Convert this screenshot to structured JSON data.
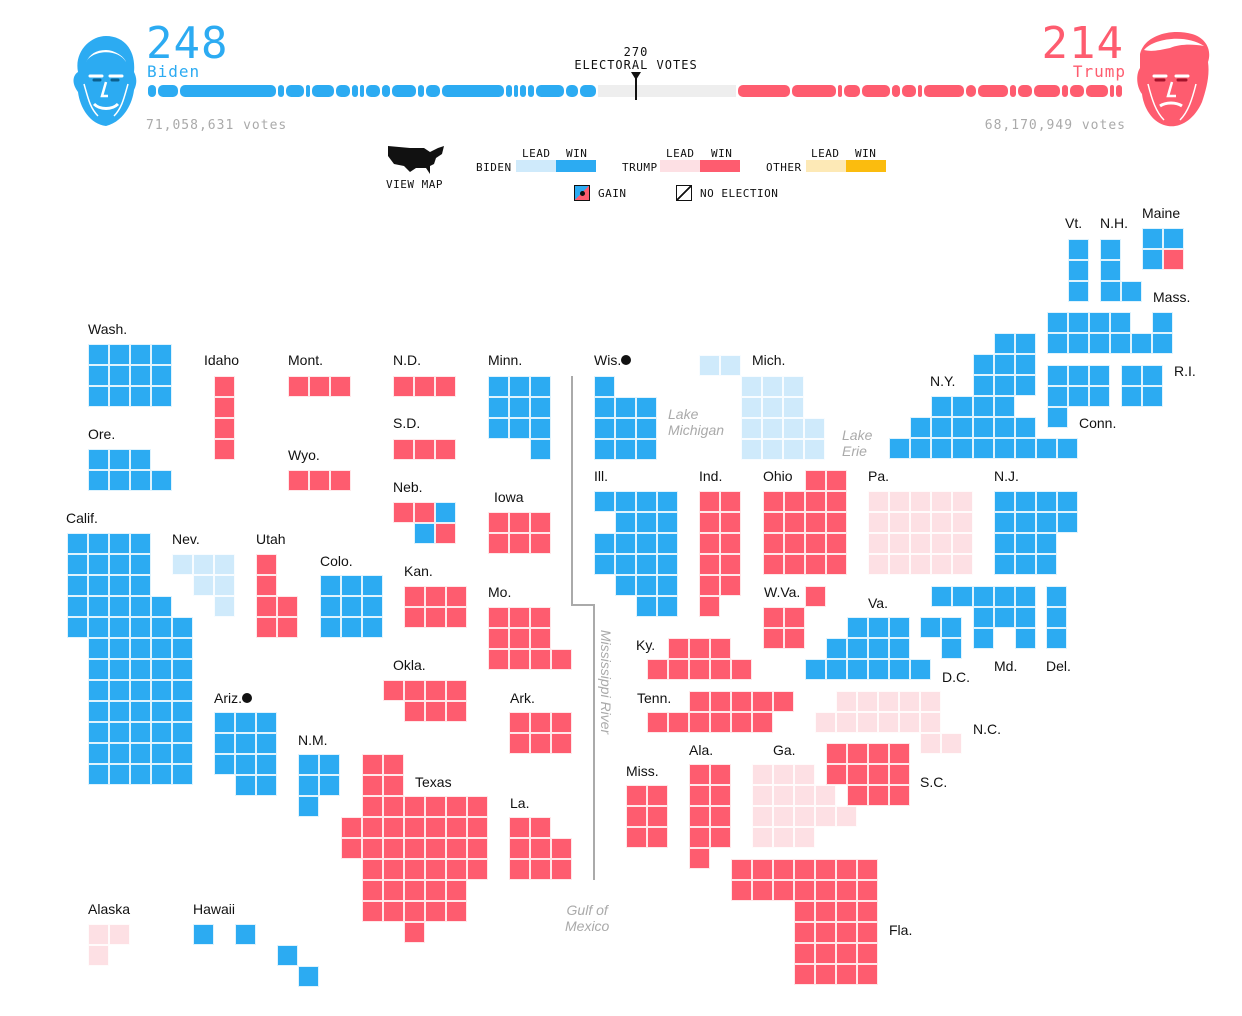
{
  "header": {
    "biden": {
      "electoral_votes": "248",
      "name": "Biden",
      "popular_votes": "71,058,631 votes"
    },
    "trump": {
      "electoral_votes": "214",
      "name": "Trump",
      "popular_votes": "68,170,949 votes"
    },
    "threshold": {
      "value": "270",
      "label": "ELECTORAL VOTES"
    }
  },
  "controls": {
    "view_map_label": "VIEW MAP"
  },
  "legend": {
    "lead": "LEAD",
    "win": "WIN",
    "biden": "BIDEN",
    "trump": "TRUMP",
    "other": "OTHER",
    "gain": "GAIN",
    "no_election": "NO ELECTION"
  },
  "colors": {
    "biden_win": "#2cabf2",
    "biden_lead": "#cfeafb",
    "trump_win": "#fe5c6f",
    "trump_lead": "#fde0e4",
    "other_lead": "#fde9b6",
    "other_win": "#fbbc0e",
    "remaining": "#eeeeee"
  },
  "map_labels": {
    "wa": "Wash.",
    "or": "Ore.",
    "ca": "Calif.",
    "id": "Idaho",
    "nv": "Nev.",
    "ut": "Utah",
    "az": "Ariz.",
    "mt": "Mont.",
    "wy": "Wyo.",
    "co": "Colo.",
    "nm": "N.M.",
    "nd": "N.D.",
    "sd": "S.D.",
    "ne": "Neb.",
    "ks": "Kan.",
    "ok": "Okla.",
    "tx": "Texas",
    "mn": "Minn.",
    "ia": "Iowa",
    "mo": "Mo.",
    "ar": "Ark.",
    "la": "La.",
    "wi": "Wis.",
    "il": "Ill.",
    "mi": "Mich.",
    "in": "Ind.",
    "oh": "Ohio",
    "ky": "Ky.",
    "tn": "Tenn.",
    "ms": "Miss.",
    "al": "Ala.",
    "ga": "Ga.",
    "fl": "Fla.",
    "sc": "S.C.",
    "nc": "N.C.",
    "va": "Va.",
    "wv": "W.Va.",
    "pa": "Pa.",
    "ny": "N.Y.",
    "nj": "N.J.",
    "md": "Md.",
    "de": "Del.",
    "dc": "D.C.",
    "vt": "Vt.",
    "nh": "N.H.",
    "me": "Maine",
    "ma": "Mass.",
    "ri": "R.I.",
    "ct": "Conn.",
    "ak": "Alaska",
    "hi": "Hawaii"
  },
  "geo_labels": {
    "lake_michigan": "Lake\nMichigan",
    "lake_erie": "Lake\nErie",
    "mississippi": "Mississippi River",
    "gulf": "Gulf of\nMexico"
  },
  "states": [
    {
      "abbr": "WA",
      "status": "biden_win",
      "ev": 12
    },
    {
      "abbr": "OR",
      "status": "biden_win",
      "ev": 7
    },
    {
      "abbr": "CA",
      "status": "biden_win",
      "ev": 55
    },
    {
      "abbr": "ID",
      "status": "trump_win",
      "ev": 4
    },
    {
      "abbr": "NV",
      "status": "biden_lead",
      "ev": 6
    },
    {
      "abbr": "UT",
      "status": "trump_win",
      "ev": 6
    },
    {
      "abbr": "AZ",
      "status": "biden_win",
      "ev": 11,
      "gain": true
    },
    {
      "abbr": "MT",
      "status": "trump_win",
      "ev": 3
    },
    {
      "abbr": "WY",
      "status": "trump_win",
      "ev": 3
    },
    {
      "abbr": "CO",
      "status": "biden_win",
      "ev": 9
    },
    {
      "abbr": "NM",
      "status": "biden_win",
      "ev": 5
    },
    {
      "abbr": "ND",
      "status": "trump_win",
      "ev": 3
    },
    {
      "abbr": "SD",
      "status": "trump_win",
      "ev": 3
    },
    {
      "abbr": "NE",
      "status": "trump_win",
      "ev": 5,
      "split_biden": 1
    },
    {
      "abbr": "KS",
      "status": "trump_win",
      "ev": 6
    },
    {
      "abbr": "OK",
      "status": "trump_win",
      "ev": 7
    },
    {
      "abbr": "TX",
      "status": "trump_win",
      "ev": 38
    },
    {
      "abbr": "MN",
      "status": "biden_win",
      "ev": 10
    },
    {
      "abbr": "IA",
      "status": "trump_win",
      "ev": 6
    },
    {
      "abbr": "MO",
      "status": "trump_win",
      "ev": 10
    },
    {
      "abbr": "AR",
      "status": "trump_win",
      "ev": 6
    },
    {
      "abbr": "LA",
      "status": "trump_win",
      "ev": 8
    },
    {
      "abbr": "WI",
      "status": "biden_win",
      "ev": 10,
      "gain": true
    },
    {
      "abbr": "IL",
      "status": "biden_win",
      "ev": 20
    },
    {
      "abbr": "MI",
      "status": "biden_lead",
      "ev": 16
    },
    {
      "abbr": "IN",
      "status": "trump_win",
      "ev": 11
    },
    {
      "abbr": "OH",
      "status": "trump_win",
      "ev": 18
    },
    {
      "abbr": "KY",
      "status": "trump_win",
      "ev": 8
    },
    {
      "abbr": "TN",
      "status": "trump_win",
      "ev": 11
    },
    {
      "abbr": "MS",
      "status": "trump_win",
      "ev": 6
    },
    {
      "abbr": "AL",
      "status": "trump_win",
      "ev": 9
    },
    {
      "abbr": "GA",
      "status": "trump_lead",
      "ev": 16
    },
    {
      "abbr": "FL",
      "status": "trump_win",
      "ev": 29
    },
    {
      "abbr": "SC",
      "status": "trump_win",
      "ev": 9
    },
    {
      "abbr": "NC",
      "status": "trump_lead",
      "ev": 15
    },
    {
      "abbr": "VA",
      "status": "biden_win",
      "ev": 13
    },
    {
      "abbr": "WV",
      "status": "trump_win",
      "ev": 5
    },
    {
      "abbr": "PA",
      "status": "trump_lead",
      "ev": 20
    },
    {
      "abbr": "NY",
      "status": "biden_win",
      "ev": 29
    },
    {
      "abbr": "NJ",
      "status": "biden_win",
      "ev": 14
    },
    {
      "abbr": "MD",
      "status": "biden_win",
      "ev": 10
    },
    {
      "abbr": "DE",
      "status": "biden_win",
      "ev": 3
    },
    {
      "abbr": "DC",
      "status": "biden_win",
      "ev": 3
    },
    {
      "abbr": "VT",
      "status": "biden_win",
      "ev": 3
    },
    {
      "abbr": "NH",
      "status": "biden_win",
      "ev": 4
    },
    {
      "abbr": "ME",
      "status": "biden_win",
      "ev": 4,
      "split_trump": 1
    },
    {
      "abbr": "MA",
      "status": "biden_win",
      "ev": 11
    },
    {
      "abbr": "RI",
      "status": "biden_win",
      "ev": 4
    },
    {
      "abbr": "CT",
      "status": "biden_win",
      "ev": 7
    },
    {
      "abbr": "AK",
      "status": "trump_lead",
      "ev": 3
    },
    {
      "abbr": "HI",
      "status": "biden_win",
      "ev": 4
    }
  ]
}
